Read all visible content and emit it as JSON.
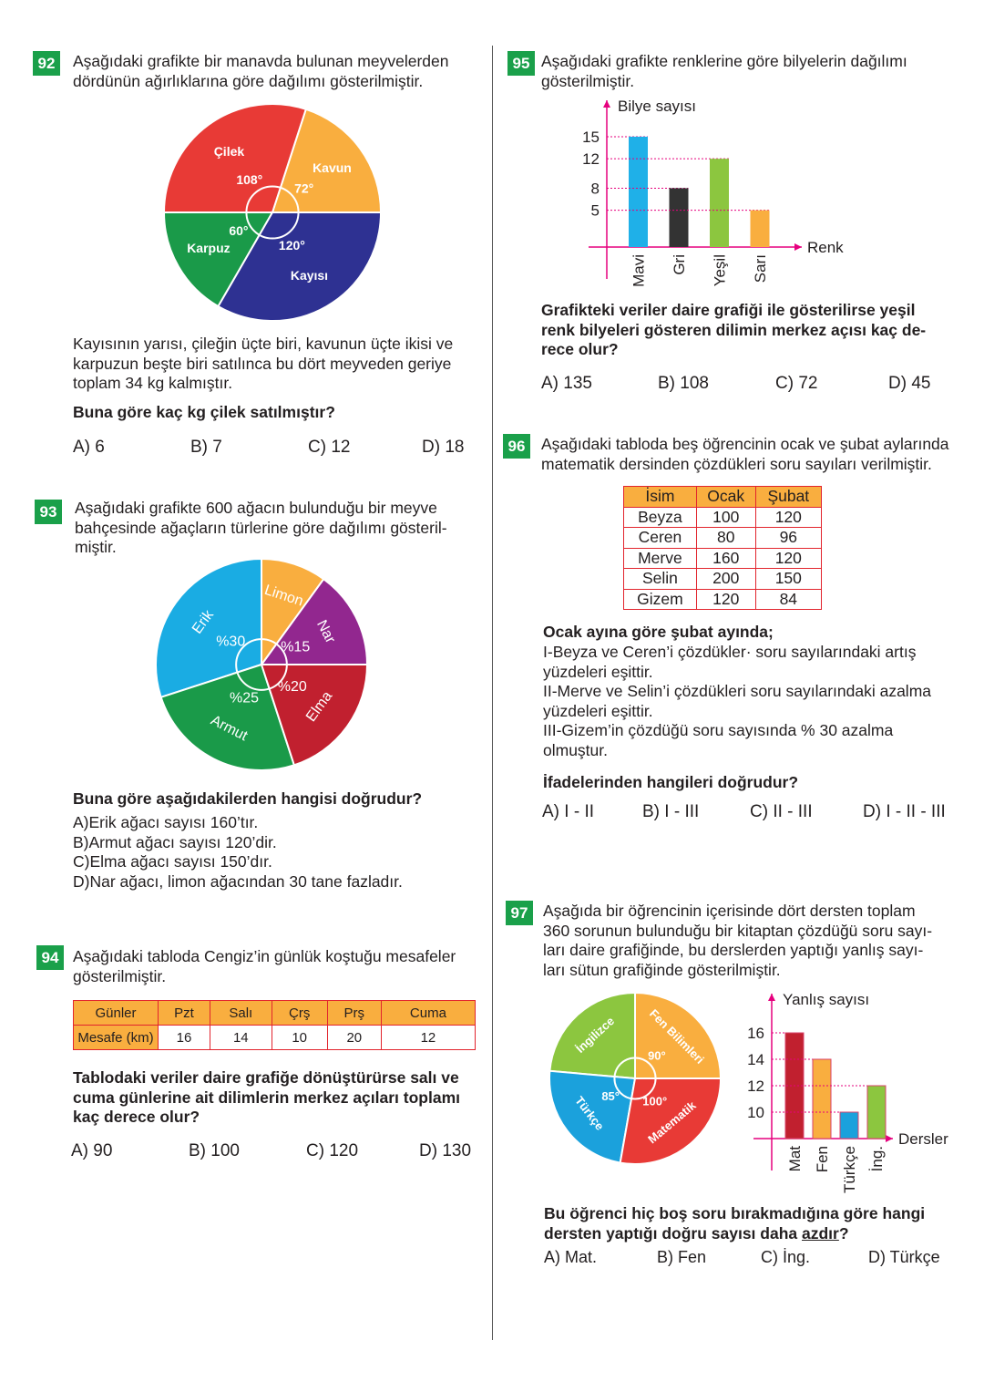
{
  "q92": {
    "number": "92",
    "intro": [
      "Aşağıdaki grafikte bir manavda bulunan meyvelerden",
      "dördünün ağırlıklarına göre dağılımı gösterilmiştir."
    ],
    "body": [
      "Kayısının yarısı, çileğin üçte biri, kavunun üçte ikisi ve",
      "karpuzun beşte biri satılınca bu dört meyveden geriye",
      "toplam 34 kg kalmıştır."
    ],
    "question": "Buna göre kaç kg çilek satılmıştır?",
    "options": [
      "A) 6",
      "B) 7",
      "C) 12",
      "D) 18"
    ]
  },
  "q93": {
    "number": "93",
    "intro": [
      "Aşağıdaki grafikte 600 ağacın bulunduğu bir meyve",
      "bahçesinde ağaçların türlerine göre dağılımı gösteril-",
      "miştir."
    ],
    "question": "Buna göre aşağıdakilerden hangisi doğrudur?",
    "options": [
      "A)Erik ağacı sayısı 160’tır.",
      "B)Armut ağacı sayısı 120’dir.",
      "C)Elma ağacı sayısı 150’dır.",
      "D)Nar ağacı, limon ağacından 30 tane fazladır."
    ]
  },
  "q94": {
    "number": "94",
    "intro": [
      "Aşağıdaki tabloda Cengiz’in günlük koştuğu mesafeler",
      "gösterilmiştir."
    ],
    "table": {
      "headers": [
        "Günler",
        "Pzt",
        "Salı",
        "Çrş",
        "Prş",
        "Cuma"
      ],
      "row": [
        "Mesafe (km)",
        "16",
        "14",
        "10",
        "20",
        "12"
      ]
    },
    "question": [
      "Tablodaki veriler daire grafiğe dönüştürürse salı ve",
      "cuma günlerine ait dilimlerin merkez açıları toplamı",
      "kaç derece olur?"
    ],
    "options": [
      "A) 90",
      "B) 100",
      "C) 120",
      "D) 130"
    ]
  },
  "q95": {
    "number": "95",
    "intro": [
      "Aşağıdaki grafikte renklerine göre bilyelerin dağılımı",
      "gösterilmiştir."
    ],
    "question": [
      "Grafikteki veriler daire grafiği ile gösterilirse yeşil",
      "renk bilyeleri gösteren dilimin merkez açısı kaç de-",
      "rece olur?"
    ],
    "options": [
      "A) 135",
      "B) 108",
      "C) 72",
      "D) 45"
    ]
  },
  "q96": {
    "number": "96",
    "intro": [
      "Aşağıdaki tabloda beş öğrencinin ocak ve şubat aylarında",
      "matematik dersinden çözdükleri soru sayıları verilmiştir."
    ],
    "table": {
      "headers": [
        "İsim",
        "Ocak",
        "Şubat"
      ],
      "rows": [
        [
          "Beyza",
          "100",
          "120"
        ],
        [
          "Ceren",
          "80",
          "96"
        ],
        [
          "Merve",
          "160",
          "120"
        ],
        [
          "Selin",
          "200",
          "150"
        ],
        [
          "Gizem",
          "120",
          "84"
        ]
      ]
    },
    "lead": "Ocak ayına göre şubat ayında;",
    "statements": [
      "I-Beyza ve Ceren’i çözdükler·  soru sayılarındaki artış",
      "yüzdeleri eşittir.",
      "II-Merve ve Selin’i çözdükleri soru sayılarındaki azalma",
      "yüzdeleri eşittir.",
      "III-Gizem’in çözdüğü soru sayısında % 30 azalma",
      "olmuştur."
    ],
    "question": "İfadelerinden hangileri doğrudur?",
    "options": [
      "A) I - II",
      "B) I - III",
      "C) II - III",
      "D) I - II - III"
    ]
  },
  "q97": {
    "number": "97",
    "intro": [
      "Aşağıda bir öğrencinin içerisinde dört dersten toplam",
      "360 sorunun bulunduğu bir kitaptan çözdüğü soru sayı-",
      "ları daire grafiğinde, bu derslerden yaptığı yanlış sayı-",
      "ları sütun grafiğinde gösterilmiştir."
    ],
    "question": [
      "Bu öğrenci hiç boş soru bırakmadığına göre hangi",
      "dersten yaptığı doğru sayısı daha "
    ],
    "question_emph": "azdır",
    "question_end": "?",
    "options": [
      "A) Mat.",
      "B) Fen",
      "C) İng.",
      "D) Türkçe"
    ]
  },
  "chart_data": [
    {
      "type": "pie",
      "id": "q92",
      "unit": "degrees",
      "slices": [
        {
          "name": "Kavun",
          "value": 72,
          "label": "72°",
          "color": "#f9ae3f"
        },
        {
          "name": "Çilek",
          "value": 108,
          "label": "108°",
          "color": "#e83a36"
        },
        {
          "name": "Karpuz",
          "value": 60,
          "label": "60°",
          "color": "#1a9a49"
        },
        {
          "name": "Kayısı",
          "value": 120,
          "label": "120°",
          "color": "#2e3192"
        }
      ]
    },
    {
      "type": "pie",
      "id": "q93",
      "unit": "percent",
      "slices": [
        {
          "name": "Nar",
          "value": 15,
          "label": "%15",
          "color": "#92278f"
        },
        {
          "name": "Limon",
          "value": 10,
          "label": "",
          "color": "#f9ae3f"
        },
        {
          "name": "Erik",
          "value": 30,
          "label": "%30",
          "color": "#1aace3"
        },
        {
          "name": "Armut",
          "value": 25,
          "label": "%25",
          "color": "#1a9a49"
        },
        {
          "name": "Elma",
          "value": 20,
          "label": "%20",
          "color": "#c1202f"
        }
      ]
    },
    {
      "type": "bar",
      "id": "q95",
      "ylabel": "Bilye sayısı",
      "xlabel": "Renk",
      "yticks": [
        5,
        8,
        12,
        15
      ],
      "categories": [
        "Mavi",
        "Gri",
        "Yeşil",
        "Sarı"
      ],
      "values": [
        15,
        8,
        12,
        5
      ],
      "colors": [
        "#1fb0e8",
        "#333333",
        "#8cc63f",
        "#f9ae3f"
      ]
    },
    {
      "type": "pie",
      "id": "q97",
      "unit": "degrees",
      "slices": [
        {
          "name": "Fen Bilimleri",
          "value": 90,
          "label": "90°",
          "color": "#f9ae3f"
        },
        {
          "name": "İngilizce",
          "value": 85,
          "label": "",
          "color": "#8cc63f"
        },
        {
          "name": "Türkçe",
          "value": 85,
          "label": "85°",
          "color": "#1ba1dc"
        },
        {
          "name": "Matematik",
          "value": 100,
          "label": "100°",
          "color": "#e83a36"
        }
      ]
    },
    {
      "type": "bar",
      "id": "q97b",
      "ylabel": "Yanlış sayısı",
      "xlabel": "Dersler",
      "yticks": [
        10,
        12,
        14,
        16
      ],
      "ylim": [
        8,
        17
      ],
      "categories": [
        "Mat",
        "Fen",
        "Türkçe",
        "İng."
      ],
      "values": [
        16,
        14,
        10,
        12
      ],
      "colors": [
        "#c1202f",
        "#f9ae3f",
        "#1ba1dc",
        "#8cc63f"
      ]
    }
  ],
  "colors": {
    "badge": "#1aa04a",
    "axis": "#e6007e",
    "table_header": "#f9ae3f",
    "table_border": "#e2242d"
  }
}
